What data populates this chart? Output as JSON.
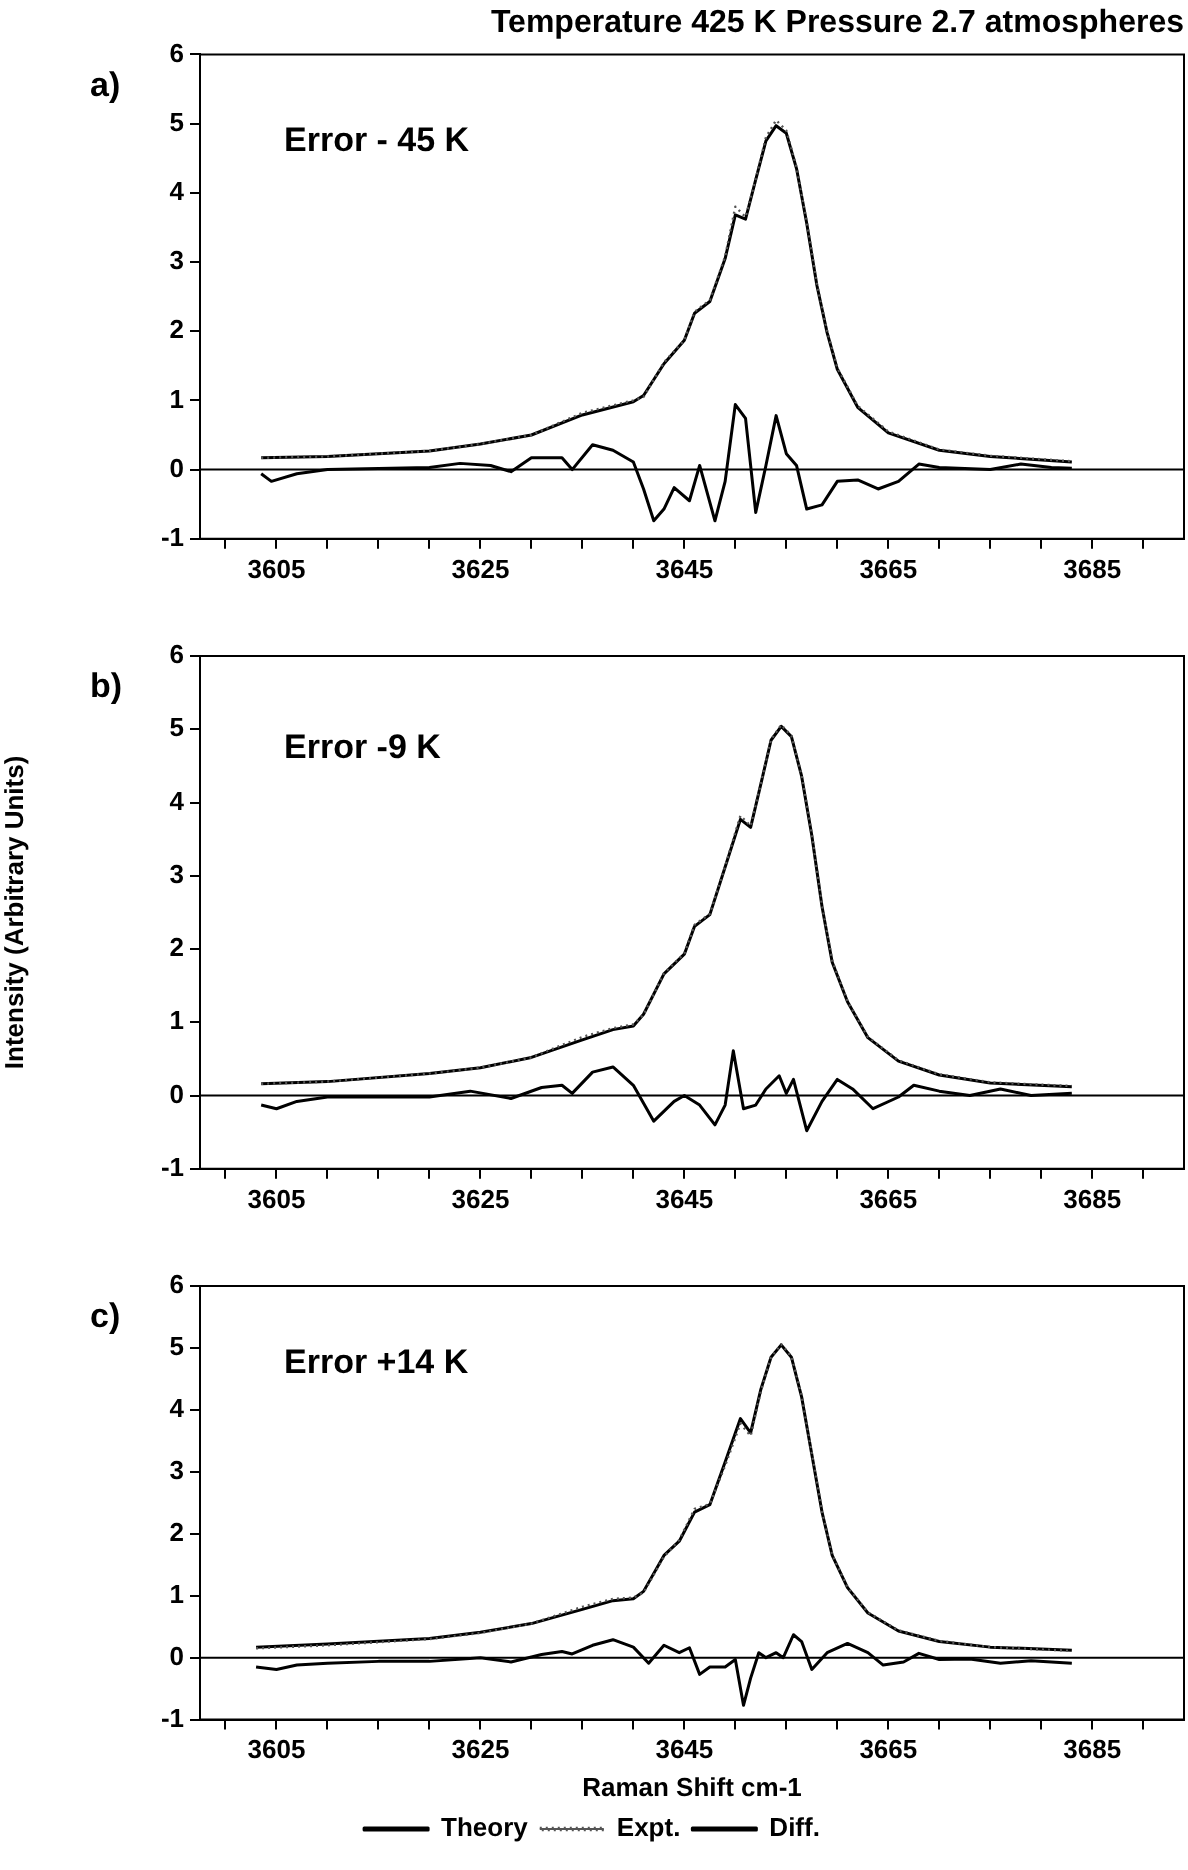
{
  "chart_data": [
    {
      "type": "line",
      "title": "Temperature 425 K Pressure 2.7 atmospheres",
      "annotations": [
        "a)",
        "Error - 45 K"
      ],
      "xlim": [
        3597.5,
        3694
      ],
      "xticks": [
        {
          "value": 3600,
          "label": null
        },
        3605,
        {
          "value": 3610,
          "label": null
        },
        {
          "value": 3615,
          "label": null
        },
        {
          "value": 3620,
          "label": null
        },
        3625,
        {
          "value": 3630,
          "label": null
        },
        {
          "value": 3635,
          "label": null
        },
        {
          "value": 3640,
          "label": null
        },
        3645,
        {
          "value": 3650,
          "label": null
        },
        {
          "value": 3655,
          "label": null
        },
        {
          "value": 3660,
          "label": null
        },
        3665,
        {
          "value": 3670,
          "label": null
        },
        {
          "value": 3675,
          "label": null
        },
        {
          "value": 3680,
          "label": null
        },
        3685,
        {
          "value": 3690,
          "label": null
        }
      ],
      "ylim": [
        -1,
        6
      ],
      "yticks": [
        -1,
        0,
        1,
        2,
        3,
        4,
        5,
        6
      ],
      "grid": false,
      "legend": false,
      "marker": "none",
      "ref_lines": [
        {
          "axis": "y",
          "value": 0,
          "label": null
        }
      ],
      "series": [
        {
          "color": "#000000",
          "line_style": "solid",
          "x": [
            3603.5,
            3610,
            3620,
            3625,
            3630,
            3635,
            3640,
            3641,
            3643,
            3645,
            3646,
            3647.5,
            3649,
            3650,
            3651,
            3652,
            3653,
            3654,
            3655,
            3656,
            3657,
            3658,
            3659,
            3660,
            3662,
            3665,
            3670,
            3675,
            3683
          ],
          "values": [
            0.17,
            0.19,
            0.27,
            0.37,
            0.5,
            0.79,
            0.98,
            1.07,
            1.53,
            1.87,
            2.26,
            2.43,
            3.05,
            3.68,
            3.62,
            4.19,
            4.75,
            4.97,
            4.86,
            4.35,
            3.56,
            2.66,
            1.98,
            1.45,
            0.9,
            0.53,
            0.28,
            0.19,
            0.11
          ]
        },
        {
          "color": "#555555",
          "line_style": "dotted",
          "x": [
            3603.5,
            3610,
            3620,
            3625,
            3630,
            3635,
            3640,
            3641,
            3643,
            3645,
            3646,
            3647.5,
            3649,
            3650,
            3651,
            3652,
            3653,
            3654,
            3655,
            3656,
            3657,
            3658,
            3659,
            3660,
            3662,
            3665,
            3670,
            3675,
            3683
          ],
          "values": [
            0.17,
            0.19,
            0.27,
            0.37,
            0.5,
            0.82,
            1.0,
            1.05,
            1.55,
            1.87,
            2.28,
            2.45,
            3.08,
            3.8,
            3.65,
            4.2,
            4.8,
            5.05,
            4.9,
            4.37,
            3.58,
            2.68,
            2.0,
            1.47,
            0.92,
            0.55,
            0.29,
            0.2,
            0.12
          ]
        },
        {
          "color": "#000000",
          "line_style": "solid",
          "x": [
            3603.5,
            3604.5,
            3607,
            3610,
            3620,
            3623,
            3626,
            3628,
            3630,
            3633,
            3634,
            3636,
            3638,
            3640,
            3641,
            3642,
            3643,
            3644,
            3645.5,
            3646.5,
            3648,
            3649,
            3650,
            3651,
            3652,
            3653,
            3654,
            3655,
            3656,
            3657,
            3658.5,
            3660,
            3662,
            3664,
            3666,
            3668,
            3670,
            3675,
            3678,
            3681,
            3683
          ],
          "values": [
            -0.06,
            -0.17,
            -0.06,
            0,
            0.03,
            0.09,
            0.06,
            -0.03,
            0.17,
            0.17,
            0,
            0.36,
            0.28,
            0.11,
            -0.28,
            -0.74,
            -0.57,
            -0.26,
            -0.45,
            0.06,
            -0.74,
            -0.17,
            0.94,
            0.74,
            -0.62,
            0.06,
            0.78,
            0.23,
            0.06,
            -0.57,
            -0.51,
            -0.17,
            -0.15,
            -0.28,
            -0.17,
            0.08,
            0.03,
            0,
            0.08,
            0.03,
            0.02
          ]
        }
      ]
    },
    {
      "type": "line",
      "ylabel": "Intensity (Arbitrary Units)",
      "annotations": [
        "b)",
        "Error -9 K"
      ],
      "xlim": [
        3597.5,
        3694
      ],
      "xticks": [
        {
          "value": 3600,
          "label": null
        },
        3605,
        {
          "value": 3610,
          "label": null
        },
        {
          "value": 3615,
          "label": null
        },
        {
          "value": 3620,
          "label": null
        },
        3625,
        {
          "value": 3630,
          "label": null
        },
        {
          "value": 3635,
          "label": null
        },
        {
          "value": 3640,
          "label": null
        },
        3645,
        {
          "value": 3650,
          "label": null
        },
        {
          "value": 3655,
          "label": null
        },
        {
          "value": 3660,
          "label": null
        },
        3665,
        {
          "value": 3670,
          "label": null
        },
        {
          "value": 3675,
          "label": null
        },
        {
          "value": 3680,
          "label": null
        },
        3685,
        {
          "value": 3690,
          "label": null
        }
      ],
      "ylim": [
        -1,
        6
      ],
      "yticks": [
        -1,
        0,
        1,
        2,
        3,
        4,
        5,
        6
      ],
      "grid": false,
      "legend": false,
      "marker": "none",
      "ref_lines": [
        {
          "axis": "y",
          "value": 0,
          "label": null
        }
      ],
      "series": [
        {
          "color": "#000000",
          "line_style": "solid",
          "x": [
            3603.5,
            3610,
            3620,
            3625,
            3630,
            3635,
            3638,
            3640,
            3641,
            3643,
            3645,
            3646,
            3647.5,
            3649,
            3650.5,
            3651.5,
            3652.5,
            3653.5,
            3654.5,
            3655.5,
            3656.5,
            3657.5,
            3658.5,
            3659.5,
            3661,
            3663,
            3666,
            3670,
            3675,
            3683
          ],
          "values": [
            0.16,
            0.19,
            0.3,
            0.38,
            0.52,
            0.76,
            0.9,
            0.95,
            1.11,
            1.66,
            1.93,
            2.31,
            2.47,
            3.12,
            3.77,
            3.66,
            4.25,
            4.85,
            5.04,
            4.9,
            4.36,
            3.55,
            2.58,
            1.82,
            1.28,
            0.79,
            0.47,
            0.28,
            0.17,
            0.12
          ]
        },
        {
          "color": "#555555",
          "line_style": "dotted",
          "x": [
            3603.5,
            3610,
            3620,
            3625,
            3630,
            3635,
            3638,
            3640,
            3641,
            3643,
            3645,
            3646,
            3647.5,
            3649,
            3650.5,
            3651.5,
            3652.5,
            3653.5,
            3654.5,
            3655.5,
            3656.5,
            3657.5,
            3658.5,
            3659.5,
            3661,
            3663,
            3666,
            3670,
            3675,
            3683
          ],
          "values": [
            0.16,
            0.19,
            0.3,
            0.38,
            0.52,
            0.8,
            0.92,
            0.97,
            1.1,
            1.67,
            1.94,
            2.33,
            2.48,
            3.13,
            3.82,
            3.68,
            4.26,
            4.86,
            5.06,
            4.91,
            4.37,
            3.56,
            2.6,
            1.84,
            1.29,
            0.8,
            0.48,
            0.29,
            0.18,
            0.13
          ]
        },
        {
          "color": "#000000",
          "line_style": "solid",
          "x": [
            3603.5,
            3605,
            3607,
            3610,
            3620,
            3624,
            3628,
            3631,
            3633,
            3634,
            3636,
            3638,
            3640,
            3642,
            3644,
            3645,
            3646.5,
            3648,
            3649,
            3649.8,
            3650.8,
            3652,
            3653,
            3654.3,
            3655,
            3655.7,
            3657,
            3658.5,
            3660,
            3661.5,
            3663.5,
            3666,
            3667.5,
            3670,
            3673,
            3676,
            3679,
            3683
          ],
          "values": [
            -0.13,
            -0.18,
            -0.08,
            -0.02,
            -0.02,
            0.06,
            -0.04,
            0.11,
            0.14,
            0.03,
            0.32,
            0.39,
            0.14,
            -0.35,
            -0.08,
            0,
            -0.13,
            -0.4,
            -0.13,
            0.61,
            -0.18,
            -0.13,
            0.09,
            0.27,
            0.03,
            0.22,
            -0.48,
            -0.08,
            0.22,
            0.09,
            -0.18,
            -0.02,
            0.14,
            0.06,
            0,
            0.09,
            0,
            0.03
          ]
        }
      ]
    },
    {
      "type": "line",
      "xlabel": "Raman Shift cm-1",
      "annotations": [
        "c)",
        "Error +14 K"
      ],
      "xlim": [
        3597.5,
        3694
      ],
      "xticks": [
        {
          "value": 3600,
          "label": null
        },
        3605,
        {
          "value": 3610,
          "label": null
        },
        {
          "value": 3615,
          "label": null
        },
        {
          "value": 3620,
          "label": null
        },
        3625,
        {
          "value": 3630,
          "label": null
        },
        {
          "value": 3635,
          "label": null
        },
        {
          "value": 3640,
          "label": null
        },
        3645,
        {
          "value": 3650,
          "label": null
        },
        {
          "value": 3655,
          "label": null
        },
        {
          "value": 3660,
          "label": null
        },
        3665,
        {
          "value": 3670,
          "label": null
        },
        {
          "value": 3675,
          "label": null
        },
        {
          "value": 3680,
          "label": null
        },
        3685,
        {
          "value": 3690,
          "label": null
        }
      ],
      "ylim": [
        -1,
        6
      ],
      "yticks": [
        -1,
        0,
        1,
        2,
        3,
        4,
        5,
        6
      ],
      "grid": false,
      "legend": "bottom",
      "marker": "none",
      "ref_lines": [
        {
          "axis": "y",
          "value": 0,
          "label": null
        }
      ],
      "series": [
        {
          "name": "Theory",
          "color": "#000000",
          "line_style": "solid",
          "x": [
            3603,
            3610,
            3620,
            3625,
            3630,
            3635,
            3638,
            3640,
            3641,
            3643,
            3644.5,
            3646,
            3647.5,
            3649,
            3650.5,
            3651.5,
            3652.5,
            3653.5,
            3654.5,
            3655.5,
            3656.5,
            3657.5,
            3658.5,
            3659.5,
            3661,
            3663,
            3666,
            3670,
            3675,
            3683
          ],
          "values": [
            0.17,
            0.22,
            0.31,
            0.41,
            0.55,
            0.78,
            0.92,
            0.95,
            1.07,
            1.65,
            1.88,
            2.35,
            2.47,
            3.16,
            3.86,
            3.63,
            4.33,
            4.85,
            5.05,
            4.85,
            4.21,
            3.28,
            2.35,
            1.65,
            1.13,
            0.72,
            0.43,
            0.26,
            0.17,
            0.12
          ]
        },
        {
          "name": "Expt.",
          "color": "#555555",
          "line_style": "dotted",
          "x": [
            3603,
            3610,
            3620,
            3625,
            3630,
            3635,
            3638,
            3640,
            3641,
            3643,
            3644.5,
            3646,
            3647.5,
            3649,
            3650.5,
            3651.5,
            3652.5,
            3653.5,
            3654.5,
            3655.5,
            3656.5,
            3657.5,
            3658.5,
            3659.5,
            3661,
            3663,
            3666,
            3670,
            3675,
            3683
          ],
          "values": [
            0.15,
            0.2,
            0.3,
            0.4,
            0.55,
            0.82,
            0.95,
            0.97,
            1.05,
            1.63,
            1.9,
            2.4,
            2.48,
            3.1,
            3.78,
            3.58,
            4.3,
            4.85,
            5.06,
            4.86,
            4.23,
            3.3,
            2.36,
            1.66,
            1.14,
            0.73,
            0.44,
            0.27,
            0.17,
            0.11
          ]
        },
        {
          "name": "Diff.",
          "color": "#000000",
          "line_style": "solid",
          "x": [
            3603,
            3605,
            3607,
            3610,
            3615,
            3620,
            3625,
            3628,
            3631,
            3633,
            3634,
            3636,
            3638,
            3640,
            3641.5,
            3643,
            3644.5,
            3645.5,
            3646.5,
            3647.5,
            3649,
            3650,
            3650.8,
            3651.5,
            3652.3,
            3653,
            3654,
            3654.7,
            3655.7,
            3656.5,
            3657.5,
            3659,
            3661,
            3663,
            3664.5,
            3666.5,
            3668,
            3670,
            3673,
            3676,
            3679,
            3683
          ],
          "values": [
            -0.15,
            -0.19,
            -0.12,
            -0.09,
            -0.06,
            -0.06,
            0,
            -0.07,
            0.05,
            0.1,
            0.06,
            0.2,
            0.29,
            0.17,
            -0.09,
            0.2,
            0.08,
            0.16,
            -0.27,
            -0.15,
            -0.15,
            -0.03,
            -0.77,
            -0.33,
            0.08,
            0,
            0.08,
            0,
            0.37,
            0.26,
            -0.19,
            0.08,
            0.23,
            0.08,
            -0.12,
            -0.07,
            0.07,
            -0.03,
            -0.02,
            -0.09,
            -0.05,
            -0.09
          ]
        }
      ]
    }
  ]
}
